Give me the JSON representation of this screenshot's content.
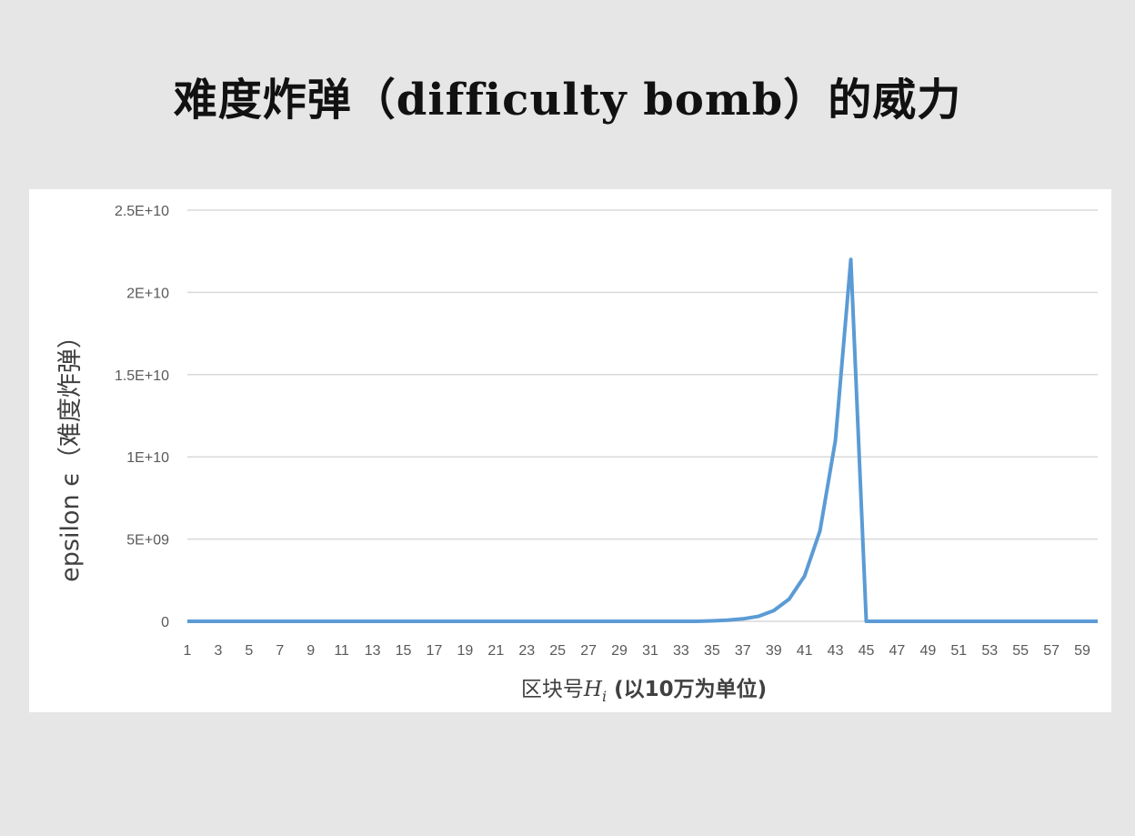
{
  "slide": {
    "title": "难度炸弹（difficulty bomb）的威力"
  },
  "chart_data": {
    "type": "line",
    "title": "",
    "xlabel": "区块号Hi (以10万为单位)",
    "xlabel_main": "区块号",
    "xlabel_var": "H",
    "xlabel_sub": "i",
    "xlabel_unit": " (以10万为单位)",
    "ylabel": "epsilon ϵ（难度炸弹）",
    "ylim": [
      0,
      25000000000
    ],
    "y_ticks": [
      0,
      5000000000,
      10000000000,
      15000000000,
      20000000000,
      25000000000
    ],
    "y_tick_labels": [
      "0",
      "5E+09",
      "1E+10",
      "1.5E+10",
      "2E+10",
      "2.5E+10"
    ],
    "x_tick_labels": [
      "1",
      "3",
      "5",
      "7",
      "9",
      "11",
      "13",
      "15",
      "17",
      "19",
      "21",
      "23",
      "25",
      "27",
      "29",
      "31",
      "33",
      "35",
      "37",
      "39",
      "41",
      "43",
      "45",
      "47",
      "49",
      "51",
      "53",
      "55",
      "57",
      "59"
    ],
    "grid": true,
    "legend": "none",
    "series_color": "#5b9bd5",
    "x": [
      1,
      2,
      3,
      4,
      5,
      6,
      7,
      8,
      9,
      10,
      11,
      12,
      13,
      14,
      15,
      16,
      17,
      18,
      19,
      20,
      21,
      22,
      23,
      24,
      25,
      26,
      27,
      28,
      29,
      30,
      31,
      32,
      33,
      34,
      35,
      36,
      37,
      38,
      39,
      40,
      41,
      42,
      43,
      44,
      45,
      46,
      47,
      48,
      49,
      50,
      51,
      52,
      53,
      54,
      55,
      56,
      57,
      58,
      59,
      60
    ],
    "series": [
      {
        "values": [
          0,
          0,
          0,
          0,
          0,
          0,
          0,
          0,
          0,
          0,
          0,
          0,
          0,
          0,
          0,
          0,
          0,
          0,
          0,
          0,
          0,
          0,
          0,
          0,
          0,
          0,
          0,
          0,
          0,
          0,
          0,
          0,
          0,
          0,
          30000000,
          70000000,
          150000000,
          300000000,
          650000000,
          1350000000,
          2750000000,
          5500000000,
          11000000000,
          22000000000,
          0,
          0,
          0,
          0,
          0,
          0,
          0,
          0,
          0,
          0,
          0,
          0,
          0,
          0,
          0,
          0
        ]
      }
    ]
  }
}
